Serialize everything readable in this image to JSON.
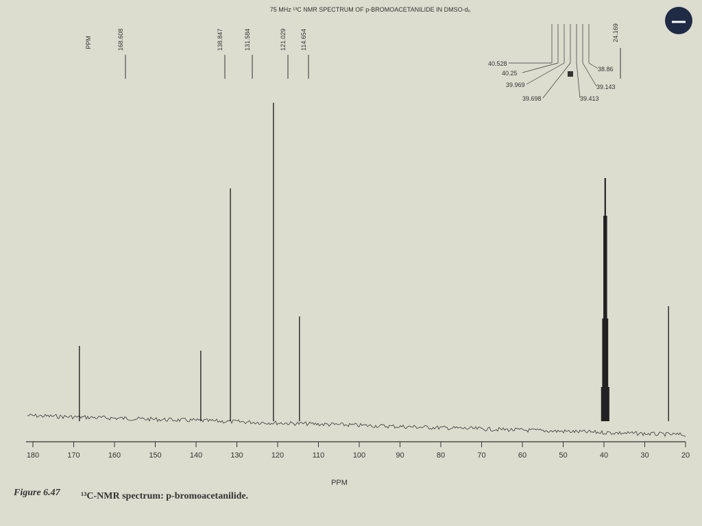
{
  "chart_data": {
    "type": "stick",
    "title": "75 MHz ¹³C NMR SPECTRUM OF p-BROMOACETANILIDE IN DMSO-d₆",
    "xlabel": "PPM",
    "caption_number": "Figure 6.47",
    "caption_text": "¹³C-NMR spectrum: p-bromoacetanilide.",
    "xlim": [
      180,
      20
    ],
    "xticks": [
      180,
      170,
      160,
      150,
      140,
      130,
      120,
      110,
      100,
      90,
      80,
      70,
      60,
      50,
      40,
      30,
      20
    ],
    "ylim": [
      0,
      500
    ],
    "color": "#222222",
    "series": [
      {
        "x": [
          168.608,
          138.847,
          131.584,
          121.029,
          114.654,
          24.169
        ],
        "values": [
          110,
          103,
          340,
          465,
          153,
          168
        ]
      },
      {
        "x": [
          40.528,
          40.25,
          39.969,
          39.698,
          39.413,
          39.143,
          38.86
        ],
        "values": [
          50,
          150,
          300,
          355,
          300,
          150,
          50
        ]
      }
    ]
  }
}
